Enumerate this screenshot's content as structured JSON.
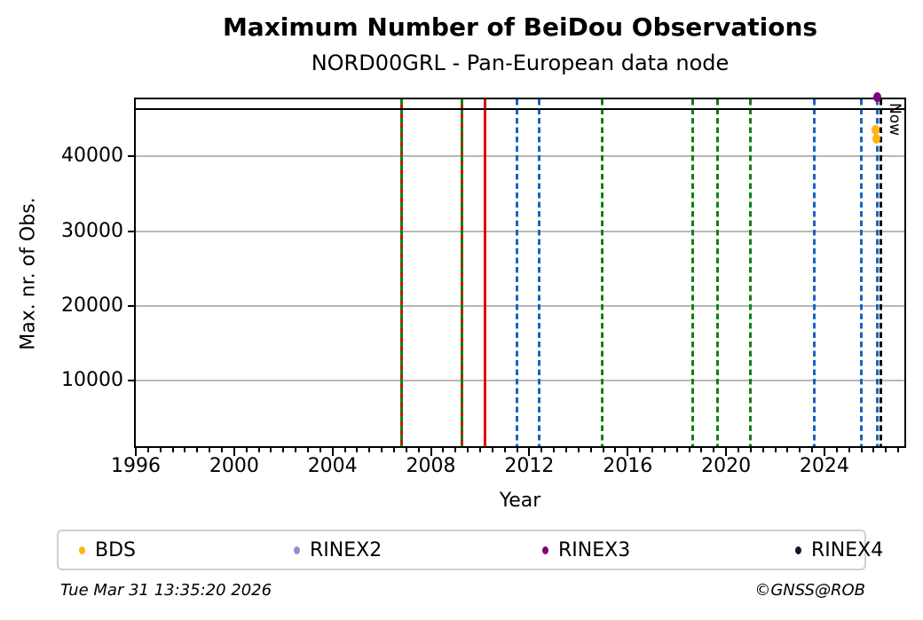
{
  "page": {
    "background": "#ffffff"
  },
  "chart_data": {
    "type": "scatter",
    "title": "Maximum Number of BeiDou Observations",
    "subtitle": "NORD00GRL - Pan-European data node",
    "xlabel": "Year",
    "ylabel": "Max. nr. of Obs.",
    "xlim": [
      1996,
      2027.25
    ],
    "x_major_ticks": [
      1996,
      2000,
      2004,
      2008,
      2012,
      2016,
      2020,
      2024
    ],
    "x_minor_step": 0.5,
    "ylim": [
      1250,
      47650
    ],
    "y_ticks": [
      10000,
      20000,
      30000,
      40000
    ],
    "grid": {
      "horizontal": true,
      "vertical": false,
      "color": "#b8b8b8"
    },
    "max_obs_line": {
      "y": 46300,
      "color": "#000000",
      "style": "solid"
    },
    "now_line": {
      "x": 2026.3,
      "label": "Now",
      "color": "#000000",
      "style": "dashed"
    },
    "event_lines": [
      {
        "x": 2006.8,
        "color": "#e00000",
        "style": "solid"
      },
      {
        "x": 2009.25,
        "color": "#e00000",
        "style": "solid"
      },
      {
        "x": 2010.2,
        "color": "#e00000",
        "style": "solid"
      },
      {
        "x": 2006.8,
        "color": "#0f820f",
        "style": "dashed"
      },
      {
        "x": 2009.25,
        "color": "#0f820f",
        "style": "dashed"
      },
      {
        "x": 2014.95,
        "color": "#0f820f",
        "style": "dashed"
      },
      {
        "x": 2018.65,
        "color": "#0f820f",
        "style": "dashed"
      },
      {
        "x": 2019.65,
        "color": "#0f820f",
        "style": "dashed"
      },
      {
        "x": 2021.0,
        "color": "#0f820f",
        "style": "dashed"
      },
      {
        "x": 2011.5,
        "color": "#1565c0",
        "style": "dashed"
      },
      {
        "x": 2012.4,
        "color": "#1565c0",
        "style": "dashed"
      },
      {
        "x": 2023.6,
        "color": "#1565c0",
        "style": "dashed"
      },
      {
        "x": 2025.5,
        "color": "#1565c0",
        "style": "dashed"
      },
      {
        "x": 2026.15,
        "color": "#1565c0",
        "style": "dashed"
      }
    ],
    "series": [
      {
        "name": "BDS",
        "color": "#ffb412",
        "points": [
          {
            "x": 2026.08,
            "y": 43600
          },
          {
            "x": 2026.12,
            "y": 42400
          }
        ]
      },
      {
        "name": "RINEX2",
        "color": "#8f8fcd",
        "points": []
      },
      {
        "name": "RINEX3",
        "color": "#800080",
        "points": [
          {
            "x": 2026.15,
            "y": 47950
          }
        ]
      },
      {
        "name": "RINEX4",
        "color": "#22102c",
        "points": []
      }
    ],
    "legend_position": "bottom"
  },
  "footer": {
    "timestamp": "Tue Mar 31 13:35:20 2026",
    "credit": "©GNSS@ROB"
  }
}
